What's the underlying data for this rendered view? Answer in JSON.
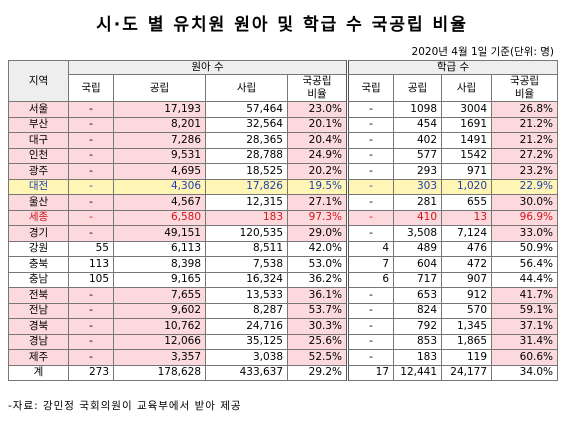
{
  "header": {
    "title": "시·도 별 유치원 원아 및 학급 수 국공립 비율",
    "note": "2020년 4월 1일 기준(단위: 명)"
  },
  "table": {
    "region_header": "지역",
    "group_headers": [
      "원아 수",
      "학급 수"
    ],
    "column_headers": [
      "국립",
      "공립",
      "사립",
      "국공립\n비율"
    ],
    "rows": [
      [
        "서울",
        "-",
        "17,193",
        "57,464",
        "23.0%",
        "-",
        "1098",
        "3004",
        "26.8%"
      ],
      [
        "부산",
        "-",
        "8,201",
        "32,564",
        "20.1%",
        "-",
        "454",
        "1691",
        "21.2%"
      ],
      [
        "대구",
        "-",
        "7,286",
        "28,365",
        "20.4%",
        "-",
        "402",
        "1491",
        "21.2%"
      ],
      [
        "인천",
        "-",
        "9,531",
        "28,788",
        "24.9%",
        "-",
        "577",
        "1542",
        "27.2%"
      ],
      [
        "광주",
        "-",
        "4,695",
        "18,525",
        "20.2%",
        "-",
        "293",
        "971",
        "23.2%"
      ],
      [
        "대전",
        "-",
        "4,306",
        "17,826",
        "19.5%",
        "-",
        "303",
        "1,020",
        "22.9%"
      ],
      [
        "울산",
        "-",
        "4,567",
        "12,315",
        "27.1%",
        "-",
        "281",
        "655",
        "30.0%"
      ],
      [
        "세종",
        "-",
        "6,580",
        "183",
        "97.3%",
        "-",
        "410",
        "13",
        "96.9%"
      ],
      [
        "경기",
        "-",
        "49,151",
        "120,535",
        "29.0%",
        "-",
        "3,508",
        "7,124",
        "33.0%"
      ],
      [
        "강원",
        "55",
        "6,113",
        "8,511",
        "42.0%",
        "4",
        "489",
        "476",
        "50.9%"
      ],
      [
        "충북",
        "113",
        "8,398",
        "7,538",
        "53.0%",
        "7",
        "604",
        "472",
        "56.4%"
      ],
      [
        "충남",
        "105",
        "9,165",
        "16,324",
        "36.2%",
        "6",
        "717",
        "907",
        "44.4%"
      ],
      [
        "전북",
        "-",
        "7,655",
        "13,533",
        "36.1%",
        "-",
        "653",
        "912",
        "41.7%"
      ],
      [
        "전남",
        "-",
        "9,602",
        "8,287",
        "53.7%",
        "-",
        "824",
        "570",
        "59.1%"
      ],
      [
        "경북",
        "-",
        "10,762",
        "24,716",
        "30.3%",
        "-",
        "792",
        "1,345",
        "37.1%"
      ],
      [
        "경남",
        "-",
        "12,066",
        "35,125",
        "25.6%",
        "-",
        "853",
        "1,865",
        "31.4%"
      ],
      [
        "제주",
        "-",
        "3,357",
        "3,038",
        "52.5%",
        "-",
        "183",
        "119",
        "60.6%"
      ],
      [
        "계",
        "273",
        "178,628",
        "433,637",
        "29.2%",
        "17",
        "12,441",
        "24,177",
        "34.0%"
      ]
    ]
  },
  "footer": {
    "source": "-자료: 강민정 국회의원이 교육부에서 받아 제공"
  }
}
